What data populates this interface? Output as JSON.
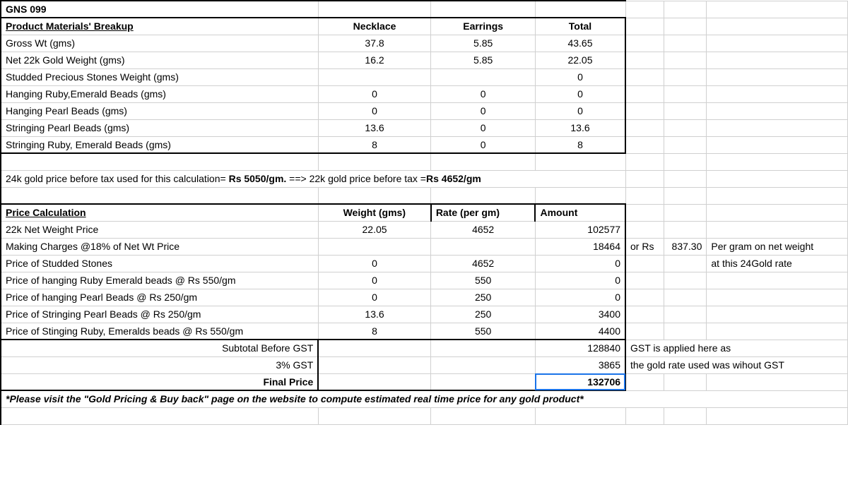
{
  "title": "GNS 099",
  "materials": {
    "header": {
      "label": "Product Materials' Breakup",
      "necklace": "Necklace",
      "earrings": "Earrings",
      "total": "Total"
    },
    "rows": [
      {
        "label": "Gross Wt (gms)",
        "necklace": "37.8",
        "earrings": "5.85",
        "total": "43.65"
      },
      {
        "label": "Net 22k Gold Weight (gms)",
        "necklace": "16.2",
        "earrings": "5.85",
        "total": "22.05"
      },
      {
        "label": "Studded Precious Stones Weight (gms)",
        "necklace": "",
        "earrings": "",
        "total": "0"
      },
      {
        "label": "Hanging Ruby,Emerald Beads (gms)",
        "necklace": "0",
        "earrings": "0",
        "total": "0"
      },
      {
        "label": "Hanging Pearl Beads (gms)",
        "necklace": "0",
        "earrings": "0",
        "total": "0"
      },
      {
        "label": "Stringing Pearl Beads (gms)",
        "necklace": "13.6",
        "earrings": "0",
        "total": "13.6"
      },
      {
        "label": "Stringing Ruby, Emerald Beads (gms)",
        "necklace": "8",
        "earrings": "0",
        "total": "8"
      }
    ]
  },
  "note1": {
    "prefix": "24k gold price before tax used for this calculation= ",
    "rate24": "Rs 5050/gm.",
    "mid": " ==> 22k gold price before tax =",
    "rate22": "Rs 4652/gm"
  },
  "price": {
    "header": {
      "label": "Price Calculation",
      "weight": "Weight (gms)",
      "rate": "Rate (per gm)",
      "amount": "Amount"
    },
    "rows": [
      {
        "label": "22k Net Weight Price",
        "weight": "22.05",
        "rate": "4652",
        "amount": "102577"
      },
      {
        "label": " Making Charges @18% of Net Wt Price",
        "weight": "",
        "rate": "",
        "amount": "18464"
      },
      {
        "label": "Price of Studded Stones",
        "weight": "0",
        "rate": "4652",
        "amount": "0"
      },
      {
        "label": "Price of hanging Ruby Emerald beads @ Rs 550/gm",
        "weight": "0",
        "rate": "550",
        "amount": "0"
      },
      {
        "label": "Price of hanging Pearl Beads @ Rs 250/gm",
        "weight": "0",
        "rate": "250",
        "amount": "0"
      },
      {
        "label": "Price of Stringing Pearl Beads @ Rs 250/gm",
        "weight": "13.6",
        "rate": "250",
        "amount": "3400"
      },
      {
        "label": "Price of Stinging Ruby, Emeralds beads @ Rs 550/gm",
        "weight": "8",
        "rate": "550",
        "amount": "4400"
      }
    ],
    "subtotal": {
      "label": "Subtotal Before GST",
      "amount": "128840"
    },
    "gst": {
      "label": "3% GST",
      "amount": "3865"
    },
    "final": {
      "label": "Final Price",
      "amount": "132706"
    }
  },
  "side": {
    "or": "or Rs",
    "rate": "837.30",
    "pergm": "Per gram on net weight",
    "at": "at this 24Gold rate",
    "gst1": "GST is applied here as",
    "gst2": "the gold rate used was wihout GST"
  },
  "footer": "*Please visit the \"Gold Pricing & Buy back\" page on the website to compute estimated real time price for any gold product*"
}
